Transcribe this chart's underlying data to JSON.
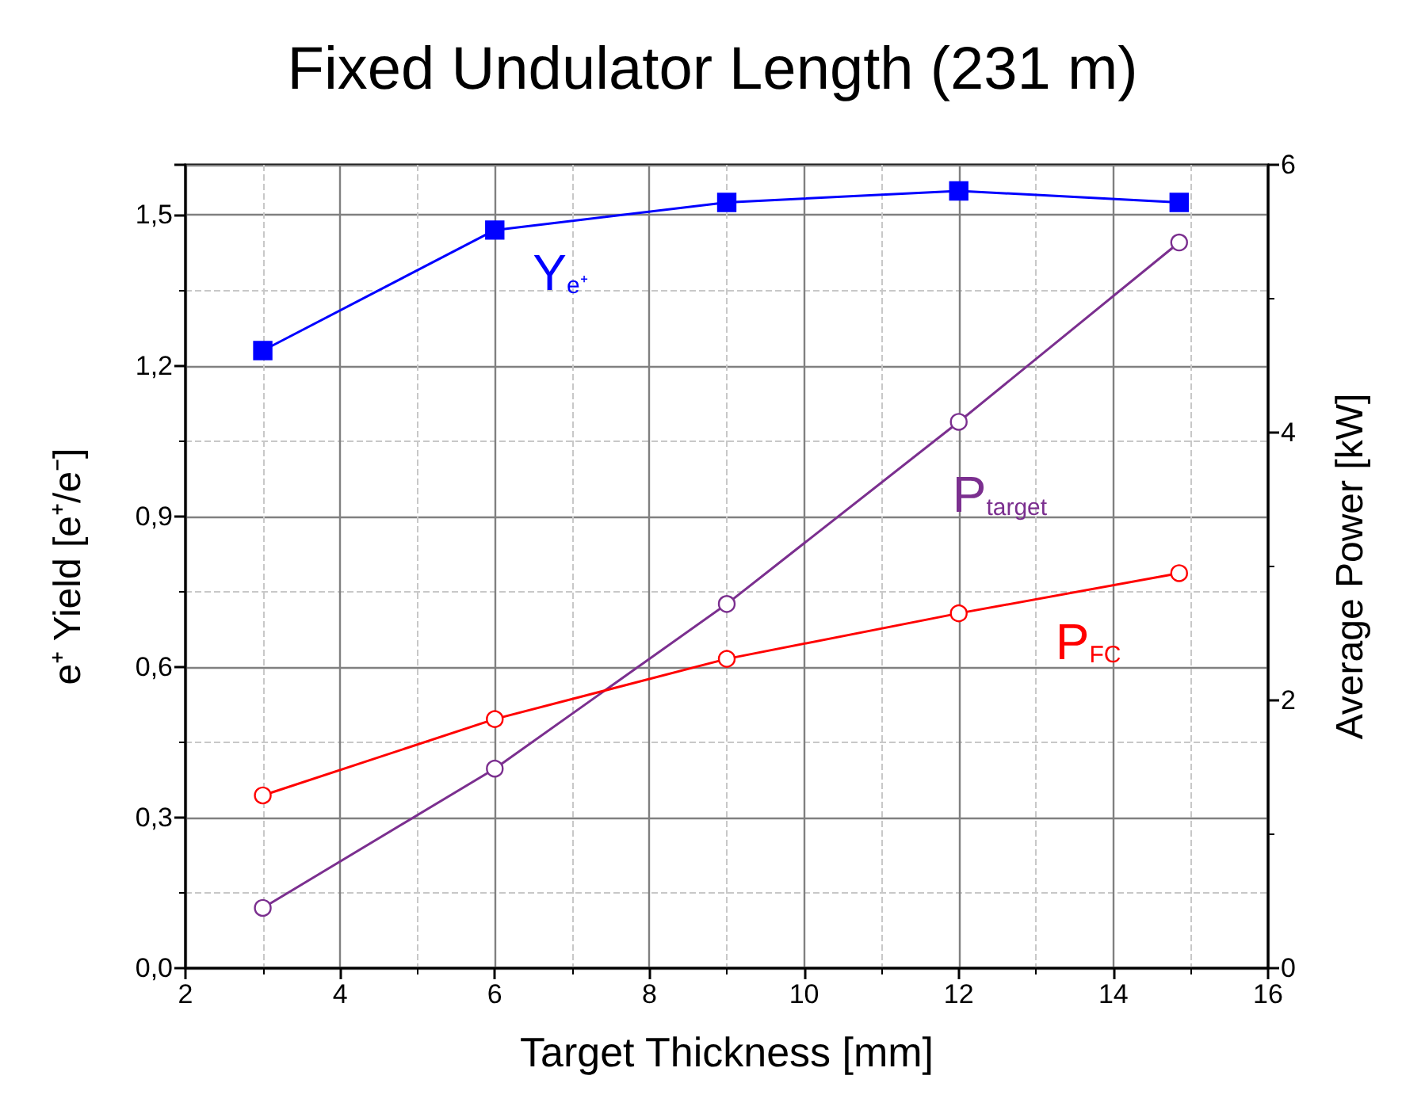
{
  "chart_data": {
    "type": "line",
    "title": "Fixed Undulator Length (231 m)",
    "xlabel": "Target Thickness [mm]",
    "ylabel": "e⁺ Yield [e⁺/e⁻]",
    "y2label": "Average Power [kW]",
    "x": [
      3,
      6,
      9,
      12,
      14.85
    ],
    "series": [
      {
        "name": "Y$_{e⁺}$",
        "color": "#0000ff",
        "marker": "square",
        "values": [
          1.23,
          1.47,
          1.525,
          1.548,
          1.525
        ]
      },
      {
        "name": "P$_{target}$",
        "color": "#7b2f8f",
        "marker": "circle",
        "axis": "y2",
        "values": [
          0.45,
          1.49,
          2.72,
          4.08,
          5.42
        ]
      },
      {
        "name": "P$_{FC}$",
        "color": "#ff0000",
        "marker": "circle",
        "axis": "y2",
        "values": [
          1.29,
          1.86,
          2.31,
          2.65,
          2.95
        ]
      }
    ],
    "xlim": [
      2,
      16
    ],
    "xticks": [
      2,
      {
        "value": 3,
        "label": null
      },
      4,
      {
        "value": 5,
        "label": null
      },
      6,
      {
        "value": 7,
        "label": null
      },
      8,
      {
        "value": 9,
        "label": null
      },
      10,
      {
        "value": 11,
        "label": null
      },
      12,
      {
        "value": 13,
        "label": null
      },
      14,
      {
        "value": 15,
        "label": null
      },
      16
    ],
    "ylim": [
      0,
      1.6
    ],
    "yticks": [
      {
        "value": 0,
        "label": "0,0"
      },
      {
        "value": 0.15,
        "label": null
      },
      {
        "value": 0.3,
        "label": "0,3"
      },
      {
        "value": 0.45,
        "label": null
      },
      {
        "value": 0.6,
        "label": "0,6"
      },
      {
        "value": 0.75,
        "label": null
      },
      {
        "value": 0.9,
        "label": "0,9"
      },
      {
        "value": 1.05,
        "label": null
      },
      {
        "value": 1.2,
        "label": "1,2"
      },
      {
        "value": 1.35,
        "label": null
      },
      {
        "value": 1.5,
        "label": "1,5"
      }
    ],
    "y2lim": [
      0,
      6
    ],
    "y2ticks": [
      0,
      {
        "value": 1,
        "label": null
      },
      2,
      {
        "value": 3,
        "label": null
      },
      4,
      {
        "value": 5,
        "label": null
      },
      6
    ],
    "grid": true,
    "line_style": "solid"
  }
}
